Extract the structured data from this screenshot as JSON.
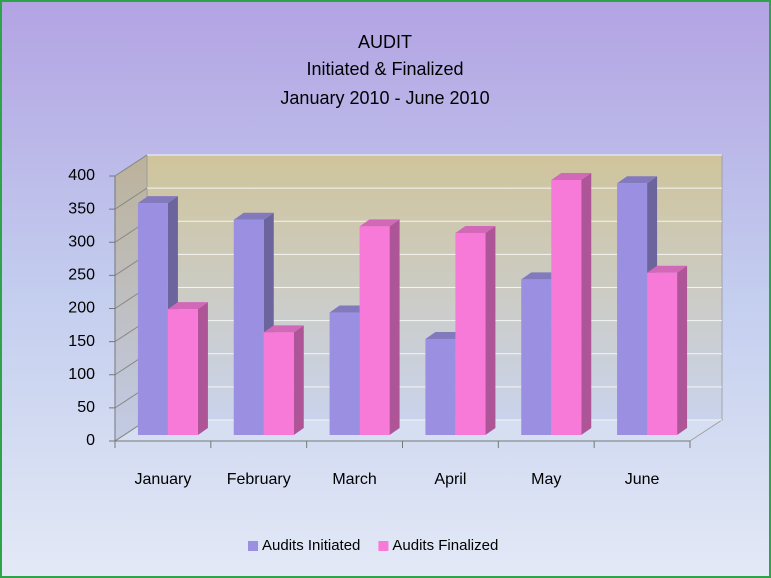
{
  "chart_data": {
    "type": "bar",
    "title": "AUDIT",
    "subtitle": [
      "Initiated & Finalized",
      "January 2010 - June 2010"
    ],
    "categories": [
      "January",
      "February",
      "March",
      "April",
      "May",
      "June"
    ],
    "series": [
      {
        "name": "Audits Initiated",
        "color": "#9a8fe0",
        "values": [
          350,
          325,
          185,
          145,
          235,
          380
        ]
      },
      {
        "name": "Audits Finalized",
        "color": "#f77ad8",
        "values": [
          190,
          155,
          315,
          305,
          385,
          245
        ]
      }
    ],
    "ylim": [
      0,
      400
    ],
    "yticks": [
      0,
      50,
      100,
      150,
      200,
      250,
      300,
      350,
      400
    ],
    "grid": true,
    "legend": "bottom"
  }
}
